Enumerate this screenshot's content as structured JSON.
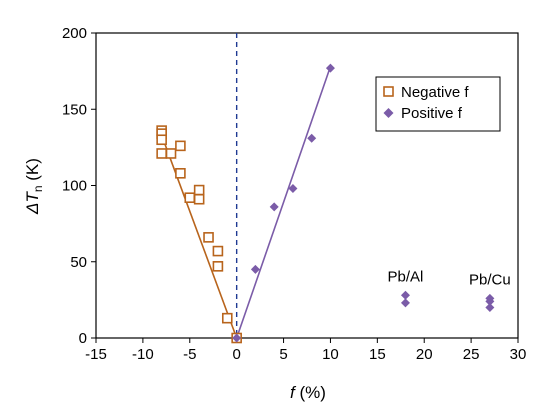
{
  "chart_data": {
    "type": "scatter",
    "xlabel": {
      "italic": "f",
      "rest": " (%)"
    },
    "ylabel": {
      "italic_a": "ΔT",
      "sub": "n",
      "rest": " (K)"
    },
    "xlim": [
      -15,
      30
    ],
    "ylim": [
      0,
      200
    ],
    "x_ticks": [
      -15,
      -10,
      -5,
      0,
      5,
      10,
      15,
      20,
      25,
      30
    ],
    "y_ticks": [
      0,
      50,
      100,
      150,
      200
    ],
    "colors": {
      "negative": "#b8641c",
      "positive": "#7b5ca8",
      "zero_line": "#1f3a93"
    },
    "series": [
      {
        "name": "Negative f",
        "marker": "open-square",
        "color": "#b8641c",
        "points": [
          [
            -8,
            136
          ],
          [
            -8,
            134
          ],
          [
            -8,
            130
          ],
          [
            -8,
            121
          ],
          [
            -7,
            121
          ],
          [
            -6,
            126
          ],
          [
            -6,
            108
          ],
          [
            -5,
            92
          ],
          [
            -4,
            97
          ],
          [
            -4,
            91
          ],
          [
            -3,
            66
          ],
          [
            -2,
            57
          ],
          [
            -2,
            47
          ],
          [
            -1,
            13
          ],
          [
            0,
            0
          ]
        ]
      },
      {
        "name": "Positive f",
        "marker": "filled-diamond",
        "color": "#7b5ca8",
        "points": [
          [
            0,
            0
          ],
          [
            2,
            45
          ],
          [
            4,
            86
          ],
          [
            6,
            98
          ],
          [
            8,
            131
          ],
          [
            10,
            177
          ],
          [
            18,
            28
          ],
          [
            18,
            23
          ],
          [
            27,
            26
          ],
          [
            27,
            24
          ],
          [
            27,
            20
          ]
        ]
      }
    ],
    "fit_lines": [
      {
        "color": "#b8641c",
        "from": [
          -8,
          133
        ],
        "to": [
          0,
          0
        ]
      },
      {
        "color": "#7b5ca8",
        "from": [
          0,
          0
        ],
        "to": [
          10,
          178
        ]
      }
    ],
    "zero_line_x": 0,
    "annotations": [
      {
        "text": "Pb/Al",
        "x": 18,
        "y": 37
      },
      {
        "text": "Pb/Cu",
        "x": 27,
        "y": 35
      }
    ],
    "legend_position": "top-right"
  }
}
